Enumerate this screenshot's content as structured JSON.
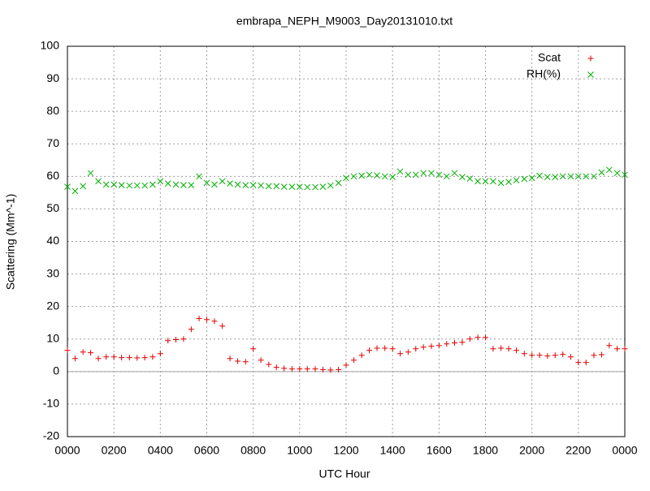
{
  "chart_data": {
    "type": "scatter",
    "title": "embrapa_NEPH_M9003_Day20131010.txt",
    "xlabel": "UTC Hour",
    "ylabel": "Scattering (Mm^-1)",
    "x": [
      0,
      0.33,
      0.67,
      1,
      1.33,
      1.67,
      2,
      2.33,
      2.67,
      3,
      3.33,
      3.67,
      4,
      4.33,
      4.67,
      5,
      5.33,
      5.67,
      6,
      6.33,
      6.67,
      7,
      7.33,
      7.67,
      8,
      8.33,
      8.67,
      9,
      9.33,
      9.67,
      10,
      10.33,
      10.67,
      11,
      11.33,
      11.67,
      12,
      12.33,
      12.67,
      13,
      13.33,
      13.67,
      14,
      14.33,
      14.67,
      15,
      15.33,
      15.67,
      16,
      16.33,
      16.67,
      17,
      17.33,
      17.67,
      18,
      18.33,
      18.67,
      19,
      19.33,
      19.67,
      20,
      20.33,
      20.67,
      21,
      21.33,
      21.67,
      22,
      22.33,
      22.67,
      23,
      23.33,
      23.67,
      24
    ],
    "series": [
      {
        "name": "Scat",
        "color": "#e00000",
        "marker": "plus",
        "values": [
          6.5,
          4,
          6,
          5.8,
          4,
          4.5,
          4.5,
          4.3,
          4.3,
          4.2,
          4.3,
          4.5,
          5.5,
          9.5,
          9.8,
          10,
          13,
          16.3,
          16,
          15.5,
          14,
          4,
          3.2,
          3,
          7,
          3.5,
          2.2,
          1.3,
          1,
          0.8,
          0.8,
          0.8,
          0.8,
          0.6,
          0.5,
          0.6,
          2,
          3.5,
          5,
          6.5,
          7.2,
          7.2,
          7,
          5.5,
          6,
          7,
          7.5,
          7.8,
          8,
          8.5,
          8.8,
          9,
          10,
          10.5,
          10.5,
          7,
          7.2,
          7,
          6.5,
          5.5,
          5,
          5,
          4.8,
          5,
          5.3,
          4.5,
          2.8,
          2.8,
          5,
          5.2,
          8,
          7,
          7
        ]
      },
      {
        "name": "RH(%)",
        "color": "#00b000",
        "marker": "cross",
        "values": [
          56.8,
          55.5,
          57,
          61,
          58.5,
          57.5,
          57.5,
          57.3,
          57.2,
          57.2,
          57.2,
          57.5,
          58.5,
          57.8,
          57.5,
          57.3,
          57.3,
          60,
          58,
          57.5,
          58.5,
          57.8,
          57.5,
          57.3,
          57.3,
          57.2,
          57,
          57,
          56.8,
          56.8,
          56.8,
          56.7,
          56.7,
          56.8,
          57.2,
          58,
          59.5,
          60,
          60.2,
          60.5,
          60.3,
          60,
          59.8,
          61.5,
          60.5,
          60.5,
          61,
          61,
          60.5,
          60,
          61,
          59.8,
          59.3,
          58.5,
          58.5,
          58.5,
          58,
          58.3,
          58.8,
          59.2,
          59.5,
          60.2,
          59.8,
          59.8,
          60,
          60,
          60,
          60,
          60,
          61.2,
          62,
          61,
          60.5
        ]
      }
    ],
    "xlim": [
      0,
      24
    ],
    "xticks": [
      {
        "value": 0,
        "label": "0000"
      },
      {
        "value": 2,
        "label": "0200"
      },
      {
        "value": 4,
        "label": "0400"
      },
      {
        "value": 6,
        "label": "0600"
      },
      {
        "value": 8,
        "label": "0800"
      },
      {
        "value": 10,
        "label": "1000"
      },
      {
        "value": 12,
        "label": "1200"
      },
      {
        "value": 14,
        "label": "1400"
      },
      {
        "value": 16,
        "label": "1600"
      },
      {
        "value": 18,
        "label": "1800"
      },
      {
        "value": 20,
        "label": "2000"
      },
      {
        "value": 22,
        "label": "2200"
      },
      {
        "value": 24,
        "label": "0000"
      }
    ],
    "ylim": [
      -20,
      100
    ],
    "yticks": [
      -20,
      -10,
      0,
      10,
      20,
      30,
      40,
      50,
      60,
      70,
      80,
      90,
      100
    ],
    "grid": true,
    "zeroaxis": true,
    "legend": "top-right"
  }
}
